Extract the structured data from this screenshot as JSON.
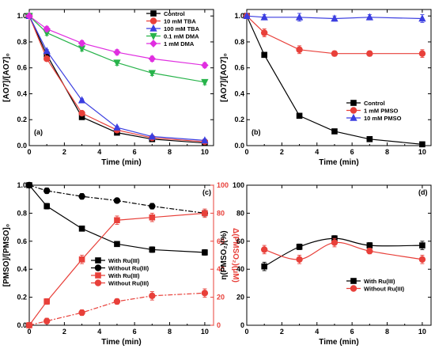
{
  "chart_data": [
    {
      "panel": "(a)",
      "type": "line",
      "xlabel": "Time (min)",
      "ylabel": "[AO7]/[AO7]₀",
      "xlim": [
        0,
        10.5
      ],
      "ylim": [
        0,
        1.05
      ],
      "xticks": [
        0,
        2,
        4,
        6,
        8,
        10
      ],
      "yticks": [
        0.0,
        0.2,
        0.4,
        0.6,
        0.8,
        1.0
      ],
      "legend": "top-right",
      "series": [
        {
          "name": "Control",
          "color": "#000000",
          "marker": "square",
          "x": [
            0,
            1,
            3,
            5,
            7,
            10
          ],
          "y": [
            1.0,
            0.7,
            0.22,
            0.1,
            0.05,
            0.02
          ],
          "err": [
            0.01,
            0.01,
            0.01,
            0.01,
            0.01,
            0.01
          ]
        },
        {
          "name": "10 mM TBA",
          "color": "#e8403a",
          "marker": "circle",
          "x": [
            0,
            1,
            3,
            5,
            7,
            10
          ],
          "y": [
            1.0,
            0.67,
            0.25,
            0.12,
            0.06,
            0.03
          ],
          "err": [
            0.01,
            0.01,
            0.01,
            0.01,
            0.01,
            0.01
          ]
        },
        {
          "name": "100 mM TBA",
          "color": "#3b3ee0",
          "marker": "triangle-up",
          "x": [
            0,
            1,
            3,
            5,
            7,
            10
          ],
          "y": [
            1.0,
            0.73,
            0.35,
            0.14,
            0.07,
            0.04
          ],
          "err": [
            0.01,
            0.01,
            0.01,
            0.01,
            0.01,
            0.01
          ]
        },
        {
          "name": "0.1 mM DMA",
          "color": "#27b34a",
          "marker": "triangle-down",
          "x": [
            0,
            1,
            3,
            5,
            7,
            10
          ],
          "y": [
            1.0,
            0.87,
            0.75,
            0.64,
            0.56,
            0.49
          ],
          "err": [
            0.01,
            0.02,
            0.02,
            0.02,
            0.02,
            0.02
          ]
        },
        {
          "name": "1 mM DMA",
          "color": "#e02ee0",
          "marker": "diamond",
          "x": [
            0,
            1,
            3,
            5,
            7,
            10
          ],
          "y": [
            1.0,
            0.9,
            0.79,
            0.72,
            0.67,
            0.62
          ],
          "err": [
            0.01,
            0.02,
            0.02,
            0.02,
            0.02,
            0.02
          ]
        }
      ]
    },
    {
      "panel": "(b)",
      "type": "line",
      "xlabel": "Time (min)",
      "ylabel": "[AO7]/[AO7]₀",
      "xlim": [
        0,
        10.5
      ],
      "ylim": [
        0,
        1.05
      ],
      "xticks": [
        0,
        2,
        4,
        6,
        8,
        10
      ],
      "yticks": [
        0.0,
        0.2,
        0.4,
        0.6,
        0.8,
        1.0
      ],
      "legend": "bottom-right",
      "series": [
        {
          "name": "Control",
          "color": "#000000",
          "marker": "square",
          "x": [
            0,
            1,
            3,
            5,
            7,
            10
          ],
          "y": [
            1.0,
            0.7,
            0.23,
            0.11,
            0.05,
            0.01
          ],
          "err": [
            0.01,
            0.01,
            0.01,
            0.01,
            0.01,
            0.01
          ]
        },
        {
          "name": "1 mM PMSO",
          "color": "#e8403a",
          "marker": "circle",
          "x": [
            0,
            1,
            3,
            5,
            7,
            10
          ],
          "y": [
            1.0,
            0.87,
            0.74,
            0.71,
            0.71,
            0.71
          ],
          "err": [
            0.01,
            0.03,
            0.03,
            0.02,
            0.02,
            0.03
          ]
        },
        {
          "name": "10 mM PMSO",
          "color": "#3b3ee0",
          "marker": "triangle-up",
          "x": [
            0,
            1,
            3,
            5,
            7,
            10
          ],
          "y": [
            1.0,
            0.99,
            0.99,
            0.98,
            0.99,
            0.98
          ],
          "err": [
            0.01,
            0.02,
            0.03,
            0.02,
            0.02,
            0.03
          ]
        }
      ]
    },
    {
      "panel": "(c)",
      "type": "line",
      "xlabel": "Time (min)",
      "ylabel": "[PMSO]/[PMSO]₀",
      "ylabel_right": "Δ(PMSO₂)(μM)",
      "xlim": [
        0,
        10.5
      ],
      "ylim": [
        0,
        1.0
      ],
      "ylim_right": [
        0,
        100
      ],
      "xticks": [
        0,
        2,
        4,
        6,
        8,
        10
      ],
      "yticks": [
        0.0,
        0.2,
        0.4,
        0.6,
        0.8,
        1.0
      ],
      "yticks_right": [
        0,
        20,
        40,
        60,
        80,
        100
      ],
      "legend": "bottom-center",
      "series": [
        {
          "name": "With Ru(III)",
          "color": "#000000",
          "marker": "square",
          "axis": "left",
          "dash": "",
          "x": [
            0,
            1,
            3,
            5,
            7,
            10
          ],
          "y": [
            1.0,
            0.85,
            0.69,
            0.58,
            0.54,
            0.52
          ],
          "err": [
            0.01,
            0.02,
            0.01,
            0.01,
            0.02,
            0.02
          ]
        },
        {
          "name": "Without Ru(III)",
          "color": "#000000",
          "marker": "circle",
          "axis": "left",
          "dash": "6,2,2,2",
          "x": [
            0,
            1,
            3,
            5,
            7,
            10
          ],
          "y": [
            1.0,
            0.96,
            0.92,
            0.89,
            0.85,
            0.8
          ],
          "err": [
            0.01,
            0.02,
            0.02,
            0.01,
            0.02,
            0.02
          ]
        },
        {
          "name": "With Ru(III)",
          "color": "#e8403a",
          "marker": "square",
          "axis": "right",
          "dash": "",
          "x": [
            0,
            1,
            3,
            5,
            7,
            10
          ],
          "y": [
            0,
            17,
            47,
            75,
            77,
            80
          ],
          "err": [
            0.5,
            2,
            3,
            3,
            3,
            3
          ]
        },
        {
          "name": "Without Ru(III)",
          "color": "#e8403a",
          "marker": "circle",
          "axis": "right",
          "dash": "6,2,2,2",
          "x": [
            0,
            1,
            3,
            5,
            7,
            10
          ],
          "y": [
            0,
            3,
            9,
            17,
            21,
            23
          ],
          "err": [
            0.5,
            2,
            2,
            2,
            3,
            3
          ]
        }
      ]
    },
    {
      "panel": "(d)",
      "type": "line",
      "xlabel": "Time (min)",
      "ylabel": "η(PMSO₂)(%)",
      "xlim": [
        0,
        10.5
      ],
      "ylim": [
        0,
        100
      ],
      "xticks": [
        0,
        2,
        4,
        6,
        8,
        10
      ],
      "yticks": [
        0,
        20,
        40,
        60,
        80,
        100
      ],
      "legend": "bottom-right",
      "series": [
        {
          "name": "With Ru(III)",
          "color": "#000000",
          "marker": "square",
          "x": [
            1,
            3,
            5,
            7,
            10
          ],
          "y": [
            42,
            56,
            62,
            57,
            57
          ],
          "err": [
            3,
            2,
            2,
            2,
            3
          ]
        },
        {
          "name": "Without Ru(III)",
          "color": "#e8403a",
          "marker": "circle",
          "x": [
            1,
            3,
            5,
            7,
            10
          ],
          "y": [
            54,
            47,
            59,
            53,
            47
          ],
          "err": [
            3,
            3,
            3,
            2,
            3
          ]
        }
      ]
    }
  ]
}
